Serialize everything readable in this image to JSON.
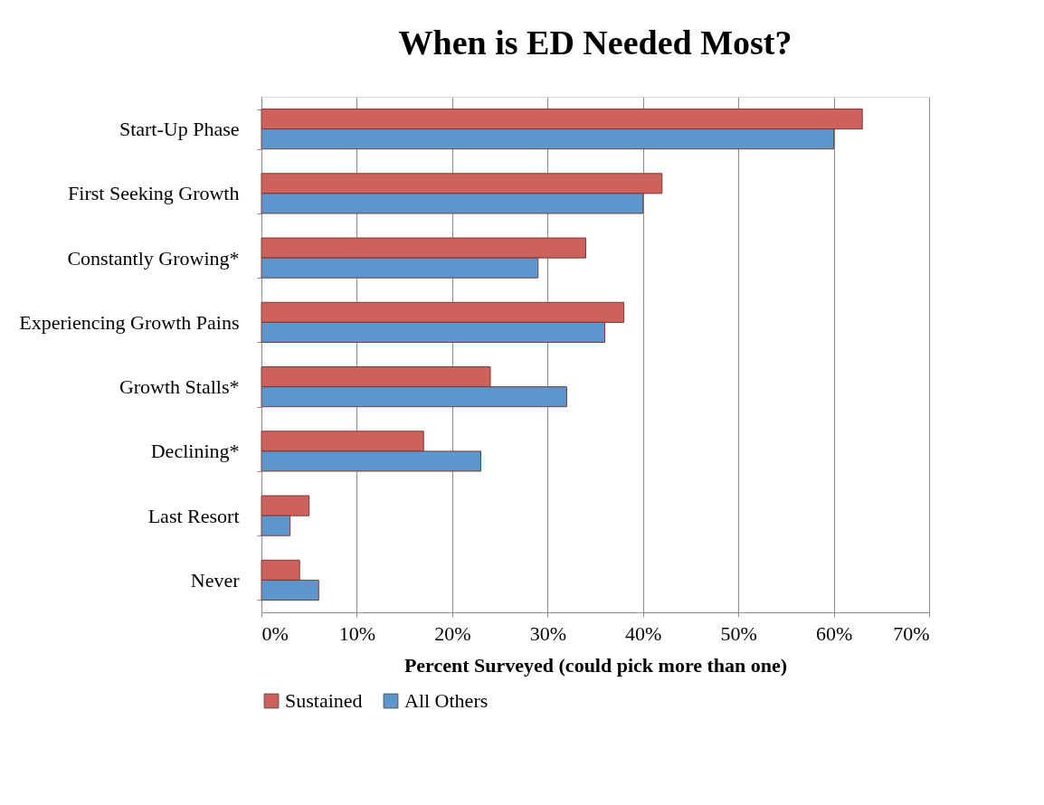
{
  "chart_data": {
    "type": "bar",
    "orientation": "horizontal",
    "title": "When is ED Needed Most?",
    "xlabel": "Percent Surveyed (could pick more than one)",
    "categories": [
      "Start-Up Phase",
      "First Seeking Growth",
      "Constantly Growing*",
      "Experiencing Growth Pains",
      "Growth Stalls*",
      "Declining*",
      "Last Resort",
      "Never"
    ],
    "series": [
      {
        "name": "Sustained",
        "color": "#cd625d",
        "values": [
          63,
          42,
          34,
          38,
          24,
          17,
          5,
          4
        ]
      },
      {
        "name": "All Others",
        "color": "#5b96cc",
        "values": [
          60,
          40,
          29,
          36,
          32,
          23,
          3,
          6
        ]
      }
    ],
    "xlim": [
      0,
      70
    ],
    "xticks": [
      {
        "value": 0,
        "label": "0%"
      },
      {
        "value": 10,
        "label": "10%"
      },
      {
        "value": 20,
        "label": "20%"
      },
      {
        "value": 30,
        "label": "30%"
      },
      {
        "value": 40,
        "label": "40%"
      },
      {
        "value": 50,
        "label": "50%"
      },
      {
        "value": 60,
        "label": "60%"
      },
      {
        "value": 70,
        "label": "70%"
      }
    ],
    "grid": "x",
    "legend": "bottom"
  }
}
